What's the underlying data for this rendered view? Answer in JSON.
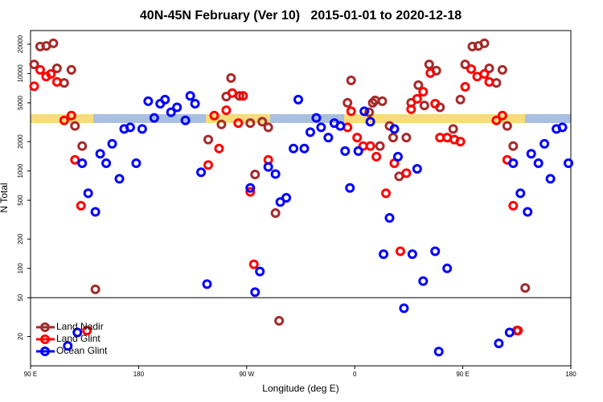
{
  "chart_data": {
    "type": "scatter",
    "title": "40N-45N February (Ver 10)   2015-01-01 to 2020-12-18",
    "x_label": "Longitude (deg E)",
    "y_label": "N Total",
    "xlim": [
      90,
      540
    ],
    "ylim": [
      10,
      27600
    ],
    "log_y": true,
    "xticks": [
      {
        "value": 90,
        "label": "90 E"
      },
      180,
      {
        "value": 270,
        "label": "90 W"
      },
      {
        "value": 360,
        "label": "0"
      },
      {
        "value": 450,
        "label": "90 E"
      },
      {
        "value": 540,
        "label": "180"
      }
    ],
    "yticks": [
      20,
      50,
      100,
      200,
      500,
      1000,
      2000,
      5000,
      10000,
      20000
    ],
    "split_at": 50,
    "legend": "lower left",
    "series": [
      {
        "name": "Land Nadir",
        "color": "#a52a2a",
        "x": [
          93,
          98,
          103,
          109,
          112,
          118,
          124,
          127,
          133,
          144,
          238,
          249,
          253,
          257,
          264,
          273,
          277,
          283,
          288,
          294,
          297,
          354,
          357,
          372,
          375,
          377,
          381,
          383,
          389,
          392,
          397,
          403,
          407,
          413,
          418,
          422,
          428,
          431,
          437,
          442,
          448,
          452,
          458,
          463,
          468,
          472,
          478,
          483,
          487,
          492,
          495,
          502
        ],
        "values": [
          12400,
          18900,
          19200,
          20400,
          11300,
          8000,
          10900,
          2900,
          1800,
          61,
          2100,
          3000,
          5800,
          9000,
          5900,
          3100,
          920,
          3200,
          2800,
          370,
          29,
          5000,
          8500,
          4000,
          5000,
          5300,
          1800,
          5200,
          2900,
          2200,
          880,
          2200,
          5000,
          7600,
          4700,
          12400,
          10700,
          4500,
          2200,
          2700,
          5400,
          12400,
          18900,
          19200,
          20400,
          11300,
          8000,
          10900,
          2900,
          1800,
          23,
          63
        ]
      },
      {
        "name": "Land Glint",
        "color": "#ff0000",
        "x": [
          93,
          98,
          103,
          107,
          112,
          118,
          124,
          127,
          132,
          137,
          238,
          243,
          247,
          253,
          258,
          263,
          267,
          273,
          276,
          288,
          354,
          357,
          362,
          367,
          373,
          378,
          386,
          393,
          398,
          403,
          407,
          412,
          417,
          423,
          427,
          431,
          437,
          443,
          448,
          452,
          457,
          462,
          468,
          472,
          478,
          483,
          487,
          492,
          496
        ],
        "values": [
          7400,
          10900,
          9300,
          9900,
          8200,
          3300,
          3700,
          1300,
          440,
          23,
          1150,
          3700,
          1700,
          4200,
          6300,
          3100,
          5900,
          610,
          110,
          1300,
          2800,
          4100,
          2200,
          1800,
          1800,
          1400,
          590,
          1200,
          150,
          950,
          4300,
          5500,
          6500,
          10100,
          4900,
          2200,
          2200,
          2100,
          2000,
          7300,
          11100,
          9300,
          9900,
          8200,
          3300,
          3700,
          1300,
          440,
          23
        ]
      },
      {
        "name": "Ocean Glint",
        "color": "#0000ff",
        "x": [
          121,
          129,
          133,
          138,
          144,
          148,
          153,
          158,
          164,
          168,
          173,
          178,
          183,
          188,
          193,
          198,
          202,
          207,
          212,
          219,
          223,
          227,
          232,
          237,
          273,
          277,
          281,
          288,
          294,
          298,
          303,
          309,
          313,
          318,
          323,
          328,
          332,
          338,
          343,
          348,
          352,
          356,
          363,
          368,
          373,
          384,
          389,
          393,
          396,
          401,
          408,
          412,
          417,
          427,
          430,
          437,
          480,
          489,
          492,
          498,
          504,
          507,
          513,
          518,
          523,
          528,
          533,
          538
        ],
        "values": [
          16,
          22,
          1200,
          590,
          380,
          1500,
          1200,
          1900,
          830,
          2700,
          2800,
          1200,
          2700,
          5200,
          3500,
          4900,
          5400,
          4000,
          4500,
          3300,
          5900,
          4900,
          970,
          69,
          670,
          57,
          93,
          1100,
          930,
          480,
          530,
          1700,
          5400,
          1700,
          2500,
          3500,
          2800,
          2200,
          3100,
          2900,
          1600,
          670,
          1600,
          4100,
          3200,
          140,
          330,
          2700,
          1400,
          39,
          140,
          1050,
          74,
          150,
          14,
          100,
          17,
          22,
          1200,
          590,
          380,
          1500,
          1200,
          1900,
          830,
          2700,
          2800,
          1200
        ]
      }
    ]
  }
}
